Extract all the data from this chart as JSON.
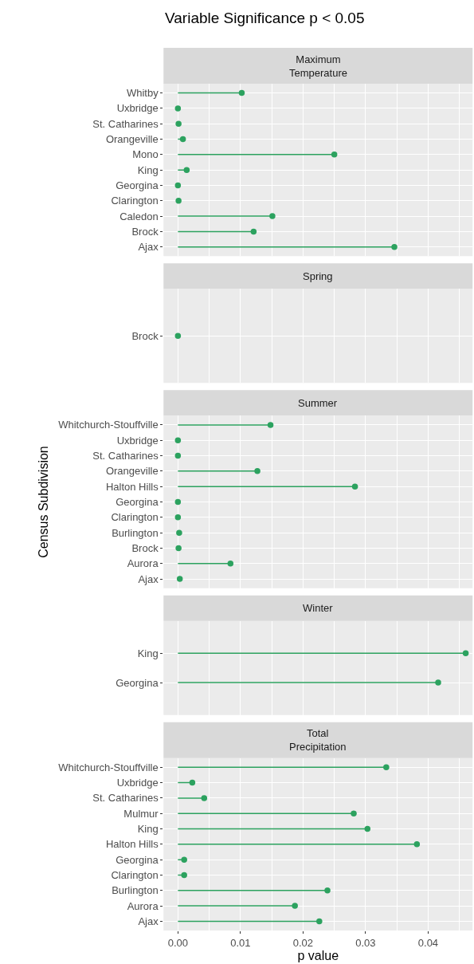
{
  "chart_data": [
    {
      "type": "lollipop",
      "title": "Variable Significance p < 0.05",
      "subtitle": "Maximum\nTemperature",
      "orientation": "horizontal",
      "categories": [
        "Whitby",
        "Uxbridge",
        "St. Catharines",
        "Orangeville",
        "Mono",
        "King",
        "Georgina",
        "Clarington",
        "Caledon",
        "Brock",
        "Ajax"
      ],
      "values": [
        0.0102,
        0.0,
        0.0001,
        0.0008,
        0.025,
        0.0014,
        0.0,
        0.0001,
        0.0151,
        0.0121,
        0.0346
      ],
      "color": "#2ca25f",
      "xlim": [
        -0.0023,
        0.0471
      ],
      "xticks": [
        {
          "value": 0,
          "label": null
        },
        {
          "value": 0.01,
          "label": null
        },
        {
          "value": 0.02,
          "label": null
        },
        {
          "value": 0.03,
          "label": null
        },
        {
          "value": 0.04,
          "label": null
        }
      ],
      "grid": true,
      "marker": "circle",
      "tick_labels": "y"
    },
    {
      "type": "lollipop",
      "subtitle": "Spring",
      "orientation": "horizontal",
      "categories": [
        "Brock"
      ],
      "values": [
        0.0
      ],
      "color": "#2ca25f",
      "xlim": [
        -0.0023,
        0.0471
      ],
      "xticks": [
        {
          "value": 0,
          "label": null
        },
        {
          "value": 0.01,
          "label": null
        },
        {
          "value": 0.02,
          "label": null
        },
        {
          "value": 0.03,
          "label": null
        },
        {
          "value": 0.04,
          "label": null
        }
      ],
      "grid": true,
      "marker": "circle",
      "tick_labels": "y"
    },
    {
      "type": "lollipop",
      "subtitle": "Summer",
      "ylabel": "Census Subdivision",
      "orientation": "horizontal",
      "categories": [
        "Whitchurch-Stouffville",
        "Uxbridge",
        "St. Catharines",
        "Orangeville",
        "Halton Hills",
        "Georgina",
        "Clarington",
        "Burlington",
        "Brock",
        "Aurora",
        "Ajax"
      ],
      "values": [
        0.0148,
        0.0,
        0.0,
        0.0127,
        0.0283,
        0.0,
        0.0,
        0.0002,
        0.0001,
        0.0084,
        0.0003
      ],
      "color": "#2ca25f",
      "xlim": [
        -0.0023,
        0.0471
      ],
      "xticks": [
        {
          "value": 0,
          "label": null
        },
        {
          "value": 0.01,
          "label": null
        },
        {
          "value": 0.02,
          "label": null
        },
        {
          "value": 0.03,
          "label": null
        },
        {
          "value": 0.04,
          "label": null
        }
      ],
      "grid": true,
      "marker": "circle",
      "tick_labels": "y"
    },
    {
      "type": "lollipop",
      "subtitle": "Winter",
      "orientation": "horizontal",
      "categories": [
        "King",
        "Georgina"
      ],
      "values": [
        0.046,
        0.0416
      ],
      "color": "#2ca25f",
      "xlim": [
        -0.0023,
        0.0471
      ],
      "xticks": [
        {
          "value": 0,
          "label": null
        },
        {
          "value": 0.01,
          "label": null
        },
        {
          "value": 0.02,
          "label": null
        },
        {
          "value": 0.03,
          "label": null
        },
        {
          "value": 0.04,
          "label": null
        }
      ],
      "grid": true,
      "marker": "circle",
      "tick_labels": "y"
    },
    {
      "type": "lollipop",
      "subtitle": "Total\nPrecipitation",
      "xlabel": "p value",
      "orientation": "horizontal",
      "categories": [
        "Whitchurch-Stouffville",
        "Uxbridge",
        "St. Catharines",
        "Mulmur",
        "King",
        "Halton Hills",
        "Georgina",
        "Clarington",
        "Burlington",
        "Aurora",
        "Ajax"
      ],
      "values": [
        0.0333,
        0.0023,
        0.0042,
        0.0281,
        0.0303,
        0.0382,
        0.001,
        0.001,
        0.0239,
        0.0187,
        0.0226
      ],
      "color": "#2ca25f",
      "xlim": [
        -0.0023,
        0.0471
      ],
      "xticks": [
        {
          "value": 0,
          "label": "0.00"
        },
        0.01,
        0.02,
        0.03,
        0.04
      ],
      "grid": true,
      "marker": "circle"
    }
  ]
}
